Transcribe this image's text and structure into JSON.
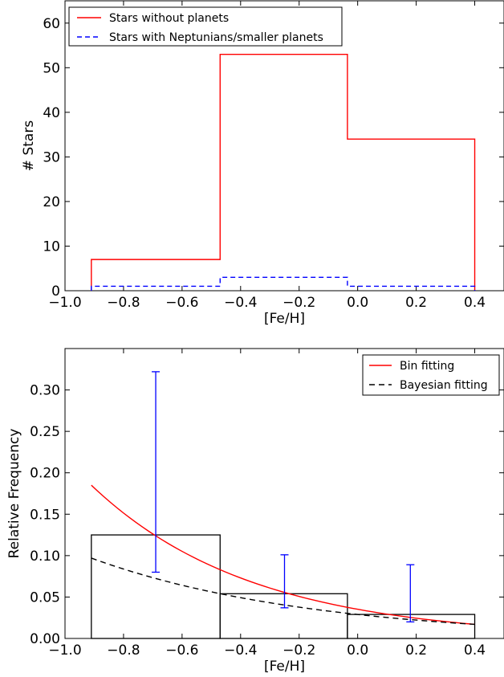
{
  "chart_data": [
    {
      "type": "histogram",
      "xlabel": "[Fe/H]",
      "ylabel": "# Stars",
      "xlim": [
        -1.0,
        0.5
      ],
      "ylim": [
        0,
        65
      ],
      "xticks": [
        -1.0,
        -0.8,
        -0.6,
        -0.4,
        -0.2,
        0.0,
        0.2,
        0.4
      ],
      "xtick_labels": [
        "−1.0",
        "−0.8",
        "−0.6",
        "−0.4",
        "−0.2",
        "0.0",
        "0.2",
        "0.4"
      ],
      "yticks": [
        0,
        10,
        20,
        30,
        40,
        50,
        60
      ],
      "ytick_labels": [
        "0",
        "10",
        "20",
        "30",
        "40",
        "50",
        "60"
      ],
      "bin_edges": [
        -0.91,
        -0.47,
        -0.035,
        0.4
      ],
      "legend_position": "top-left",
      "series": [
        {
          "name": "Stars without planets",
          "counts": [
            7,
            53,
            34
          ],
          "color": "#ff0000",
          "style": "solid"
        },
        {
          "name": "Stars with Neptunians/smaller planets",
          "counts": [
            1,
            3,
            1
          ],
          "color": "#0000ff",
          "style": "dashed"
        }
      ]
    },
    {
      "type": "bar",
      "xlabel": "[Fe/H]",
      "ylabel": "Relative Frequency",
      "xlim": [
        -1.0,
        0.5
      ],
      "ylim": [
        0,
        0.35
      ],
      "xticks": [
        -1.0,
        -0.8,
        -0.6,
        -0.4,
        -0.2,
        0.0,
        0.2,
        0.4
      ],
      "xtick_labels": [
        "−1.0",
        "−0.8",
        "−0.6",
        "−0.4",
        "−0.2",
        "0.0",
        "0.2",
        "0.4"
      ],
      "yticks": [
        0,
        0.05,
        0.1,
        0.15,
        0.2,
        0.25,
        0.3
      ],
      "ytick_labels": [
        "0.00",
        "0.05",
        "0.10",
        "0.15",
        "0.20",
        "0.25",
        "0.30"
      ],
      "bin_edges": [
        -0.91,
        -0.47,
        -0.035,
        0.4
      ],
      "bar_values": [
        0.125,
        0.054,
        0.029
      ],
      "error_bars": [
        {
          "x": -0.69,
          "y": 0.125,
          "lower": 0.08,
          "upper": 0.322
        },
        {
          "x": -0.25,
          "y": 0.054,
          "lower": 0.037,
          "upper": 0.101
        },
        {
          "x": 0.18,
          "y": 0.029,
          "lower": 0.02,
          "upper": 0.089
        }
      ],
      "error_color": "#0000ff",
      "legend_position": "top-right",
      "series": [
        {
          "name": "Bin fitting",
          "color": "#ff0000",
          "style": "solid",
          "x_range": [
            -0.91,
            0.4
          ],
          "y_start": 0.185,
          "y_end": 0.017
        },
        {
          "name": "Bayesian fitting",
          "color": "#000000",
          "style": "dashed",
          "x_range": [
            -0.91,
            0.4
          ],
          "y_start": 0.097,
          "y_end": 0.017
        }
      ]
    }
  ]
}
